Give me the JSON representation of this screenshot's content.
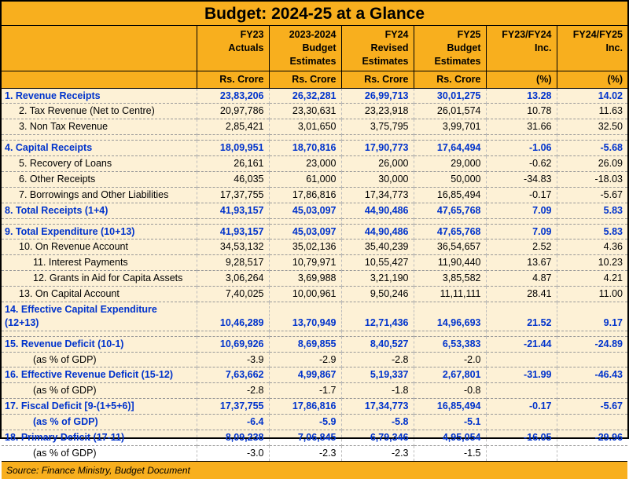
{
  "title": "Budget: 2024-25 at a Glance",
  "columns": {
    "c1": "FY23\nActuals",
    "c2": "2023-2024\nBudget\nEstimates",
    "c3": "FY24\nRevised\nEstimates",
    "c4": "FY25\nBudget\nEstimates",
    "c5": "FY23/FY24\nInc.",
    "c6": "FY24/FY25\nInc."
  },
  "units": {
    "c1": "Rs. Crore",
    "c2": "Rs. Crore",
    "c3": "Rs. Crore",
    "c4": "Rs. Crore",
    "c5": "(%)",
    "c6": "(%)"
  },
  "rows": [
    {
      "id": "r1",
      "label": "1. Revenue Receipts",
      "blue": true,
      "ind": 0,
      "v": [
        "23,83,206",
        "26,32,281",
        "26,99,713",
        "30,01,275",
        "13.28",
        "14.02"
      ]
    },
    {
      "id": "r2",
      "label": "2. Tax Revenue (Net to Centre)",
      "ind": 1,
      "v": [
        "20,97,786",
        "23,30,631",
        "23,23,918",
        "26,01,574",
        "10.78",
        "11.63"
      ]
    },
    {
      "id": "r3",
      "label": "3. Non Tax Revenue",
      "ind": 1,
      "v": [
        "2,85,421",
        "3,01,650",
        "3,75,795",
        "3,99,701",
        "31.66",
        "32.50"
      ]
    },
    {
      "spacer": true
    },
    {
      "id": "r4",
      "label": "4. Capital Receipts",
      "blue": true,
      "ind": 0,
      "v": [
        "18,09,951",
        "18,70,816",
        "17,90,773",
        "17,64,494",
        "-1.06",
        "-5.68"
      ]
    },
    {
      "id": "r5",
      "label": "5. Recovery of Loans",
      "ind": 1,
      "v": [
        "26,161",
        "23,000",
        "26,000",
        "29,000",
        "-0.62",
        "26.09"
      ]
    },
    {
      "id": "r6",
      "label": "6. Other Receipts",
      "ind": 1,
      "v": [
        "46,035",
        "61,000",
        "30,000",
        "50,000",
        "-34.83",
        "-18.03"
      ]
    },
    {
      "id": "r7",
      "label": "7. Borrowings and Other Liabilities",
      "ind": 1,
      "v": [
        "17,37,755",
        "17,86,816",
        "17,34,773",
        "16,85,494",
        "-0.17",
        "-5.67"
      ]
    },
    {
      "id": "r8",
      "label": "8. Total Receipts (1+4)",
      "blue": true,
      "ind": 0,
      "v": [
        "41,93,157",
        "45,03,097",
        "44,90,486",
        "47,65,768",
        "7.09",
        "5.83"
      ]
    },
    {
      "spacer": true
    },
    {
      "id": "r9",
      "label": "9. Total Expenditure (10+13)",
      "blue": true,
      "ind": 0,
      "v": [
        "41,93,157",
        "45,03,097",
        "44,90,486",
        "47,65,768",
        "7.09",
        "5.83"
      ]
    },
    {
      "id": "r10",
      "label": "10. On Revenue Account",
      "ind": 1,
      "v": [
        "34,53,132",
        "35,02,136",
        "35,40,239",
        "36,54,657",
        "2.52",
        "4.36"
      ]
    },
    {
      "id": "r11",
      "label": "11. Interest Payments",
      "ind": 2,
      "v": [
        "9,28,517",
        "10,79,971",
        "10,55,427",
        "11,90,440",
        "13.67",
        "10.23"
      ]
    },
    {
      "id": "r12",
      "label": "12. Grants in Aid for Capita Assets",
      "ind": 2,
      "v": [
        "3,06,264",
        "3,69,988",
        "3,21,190",
        "3,85,582",
        "4.87",
        "4.21"
      ]
    },
    {
      "id": "r13",
      "label": "13. On Capital Account",
      "ind": 1,
      "v": [
        "7,40,025",
        "10,00,961",
        "9,50,246",
        "11,11,111",
        "28.41",
        "11.00"
      ]
    },
    {
      "id": "r14",
      "label": "14. Effective Capital Expenditure (12+13)",
      "blue": true,
      "ind": 0,
      "v": [
        "10,46,289",
        "13,70,949",
        "12,71,436",
        "14,96,693",
        "21.52",
        "9.17"
      ]
    },
    {
      "spacer": true
    },
    {
      "id": "r15",
      "label": "15. Revenue Deficit (10-1)",
      "blue": true,
      "ind": 0,
      "v": [
        "10,69,926",
        "8,69,855",
        "8,40,527",
        "6,53,383",
        "-21.44",
        "-24.89"
      ]
    },
    {
      "id": "r15b",
      "label": "(as % of GDP)",
      "ind": 2,
      "v": [
        "-3.9",
        "-2.9",
        "-2.8",
        "-2.0",
        "",
        ""
      ]
    },
    {
      "id": "r16",
      "label": "16. Effective Revenue Deficit (15-12)",
      "blue": true,
      "ind": 0,
      "v": [
        "7,63,662",
        "4,99,867",
        "5,19,337",
        "2,67,801",
        "-31.99",
        "-46.43"
      ]
    },
    {
      "id": "r16b",
      "label": "(as % of GDP)",
      "ind": 2,
      "v": [
        "-2.8",
        "-1.7",
        "-1.8",
        "-0.8",
        "",
        ""
      ]
    },
    {
      "id": "r17",
      "label": "17. Fiscal Deficit  [9-(1+5+6)]",
      "blue": true,
      "ind": 0,
      "v": [
        "17,37,755",
        "17,86,816",
        "17,34,773",
        "16,85,494",
        "-0.17",
        "-5.67"
      ]
    },
    {
      "id": "r17b",
      "label": "(as % of GDP)",
      "ind": 2,
      "blue": true,
      "v": [
        "-6.4",
        "-5.9",
        "-5.8",
        "-5.1",
        "",
        ""
      ]
    },
    {
      "id": "r18",
      "label": "18. Primary Deficit (17-11)",
      "blue": true,
      "ind": 0,
      "v": [
        "8,09,238",
        "7,06,845",
        "6,79,346",
        "4,95,054",
        "-16.05",
        "-29.96"
      ]
    },
    {
      "id": "r18b",
      "label": "(as % of GDP)",
      "ind": 2,
      "v": [
        "-3.0",
        "-2.3",
        "-2.3",
        "-1.5",
        "",
        ""
      ]
    }
  ],
  "source": "Source: Finance Ministry, Budget Document",
  "style": {
    "header_bg": "#f8af1e",
    "body_bg": "#fdf1d6",
    "blue": "#0033cc",
    "font_size_pt": 12.5,
    "title_font_size_pt": 21
  }
}
